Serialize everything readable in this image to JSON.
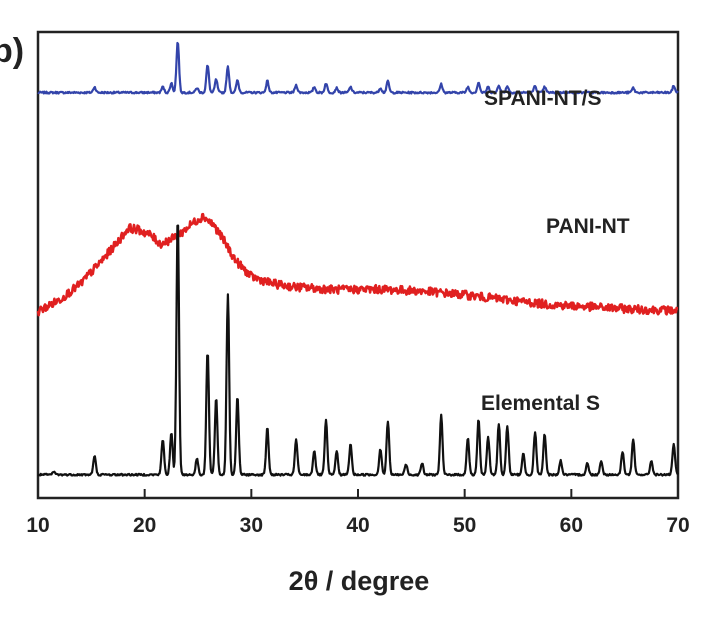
{
  "chart_data": {
    "type": "line",
    "panel_label": "b)",
    "xlabel": "2θ / degree",
    "ylabel": "",
    "xlim": [
      10,
      70
    ],
    "xticks": [
      10,
      20,
      30,
      40,
      50,
      60,
      70
    ],
    "y_ticks_shown": false,
    "grid": false,
    "legend": "inline labels right of each trace",
    "series": [
      {
        "name": "SPANI-NT/S",
        "color": "#3344aa",
        "kind": "sharp",
        "baseline": 0.87,
        "peaks": [
          [
            15.3,
            0.012
          ],
          [
            21.7,
            0.012
          ],
          [
            22.5,
            0.02
          ],
          [
            23.1,
            0.11
          ],
          [
            24.9,
            0.01
          ],
          [
            25.9,
            0.058
          ],
          [
            26.7,
            0.028
          ],
          [
            27.8,
            0.055
          ],
          [
            28.7,
            0.026
          ],
          [
            31.5,
            0.025
          ],
          [
            34.2,
            0.016
          ],
          [
            35.9,
            0.012
          ],
          [
            37.0,
            0.02
          ],
          [
            38.0,
            0.01
          ],
          [
            39.3,
            0.012
          ],
          [
            42.1,
            0.01
          ],
          [
            42.8,
            0.024
          ],
          [
            47.8,
            0.018
          ],
          [
            50.3,
            0.012
          ],
          [
            51.3,
            0.022
          ],
          [
            52.2,
            0.012
          ],
          [
            53.2,
            0.016
          ],
          [
            54.0,
            0.014
          ],
          [
            56.6,
            0.014
          ],
          [
            57.5,
            0.012
          ],
          [
            65.8,
            0.01
          ],
          [
            69.6,
            0.014
          ]
        ]
      },
      {
        "name": "PANI-NT",
        "color": "#e02020",
        "kind": "broad",
        "points": [
          [
            10.0,
            0.4
          ],
          [
            12.0,
            0.425
          ],
          [
            14.0,
            0.46
          ],
          [
            16.0,
            0.51
          ],
          [
            17.5,
            0.55
          ],
          [
            18.5,
            0.58
          ],
          [
            19.5,
            0.575
          ],
          [
            20.5,
            0.565
          ],
          [
            21.5,
            0.545
          ],
          [
            22.5,
            0.555
          ],
          [
            23.5,
            0.57
          ],
          [
            24.5,
            0.59
          ],
          [
            25.5,
            0.605
          ],
          [
            26.5,
            0.585
          ],
          [
            27.5,
            0.55
          ],
          [
            28.5,
            0.51
          ],
          [
            30.0,
            0.475
          ],
          [
            32.0,
            0.46
          ],
          [
            34.0,
            0.453
          ],
          [
            38.0,
            0.447
          ],
          [
            42.0,
            0.448
          ],
          [
            46.0,
            0.444
          ],
          [
            50.0,
            0.436
          ],
          [
            54.0,
            0.425
          ],
          [
            58.0,
            0.415
          ],
          [
            62.0,
            0.41
          ],
          [
            66.0,
            0.405
          ],
          [
            70.0,
            0.402
          ]
        ]
      },
      {
        "name": "Elemental S",
        "color": "#111111",
        "kind": "sharp",
        "baseline": 0.05,
        "peaks": [
          [
            11.5,
            0.006
          ],
          [
            15.3,
            0.04
          ],
          [
            21.7,
            0.075
          ],
          [
            22.5,
            0.09
          ],
          [
            23.1,
            0.555
          ],
          [
            24.9,
            0.035
          ],
          [
            25.9,
            0.265
          ],
          [
            26.7,
            0.165
          ],
          [
            27.8,
            0.388
          ],
          [
            28.7,
            0.167
          ],
          [
            31.5,
            0.1
          ],
          [
            34.2,
            0.075
          ],
          [
            35.9,
            0.052
          ],
          [
            37.0,
            0.117
          ],
          [
            38.0,
            0.05
          ],
          [
            39.3,
            0.065
          ],
          [
            42.1,
            0.055
          ],
          [
            42.8,
            0.115
          ],
          [
            44.5,
            0.022
          ],
          [
            46.0,
            0.025
          ],
          [
            47.8,
            0.127
          ],
          [
            50.3,
            0.078
          ],
          [
            51.3,
            0.12
          ],
          [
            52.2,
            0.082
          ],
          [
            53.2,
            0.11
          ],
          [
            54.0,
            0.105
          ],
          [
            55.5,
            0.045
          ],
          [
            56.6,
            0.092
          ],
          [
            57.5,
            0.088
          ],
          [
            59.0,
            0.03
          ],
          [
            61.5,
            0.025
          ],
          [
            62.8,
            0.03
          ],
          [
            64.8,
            0.05
          ],
          [
            65.8,
            0.075
          ],
          [
            67.5,
            0.03
          ],
          [
            69.6,
            0.065
          ]
        ]
      }
    ]
  }
}
